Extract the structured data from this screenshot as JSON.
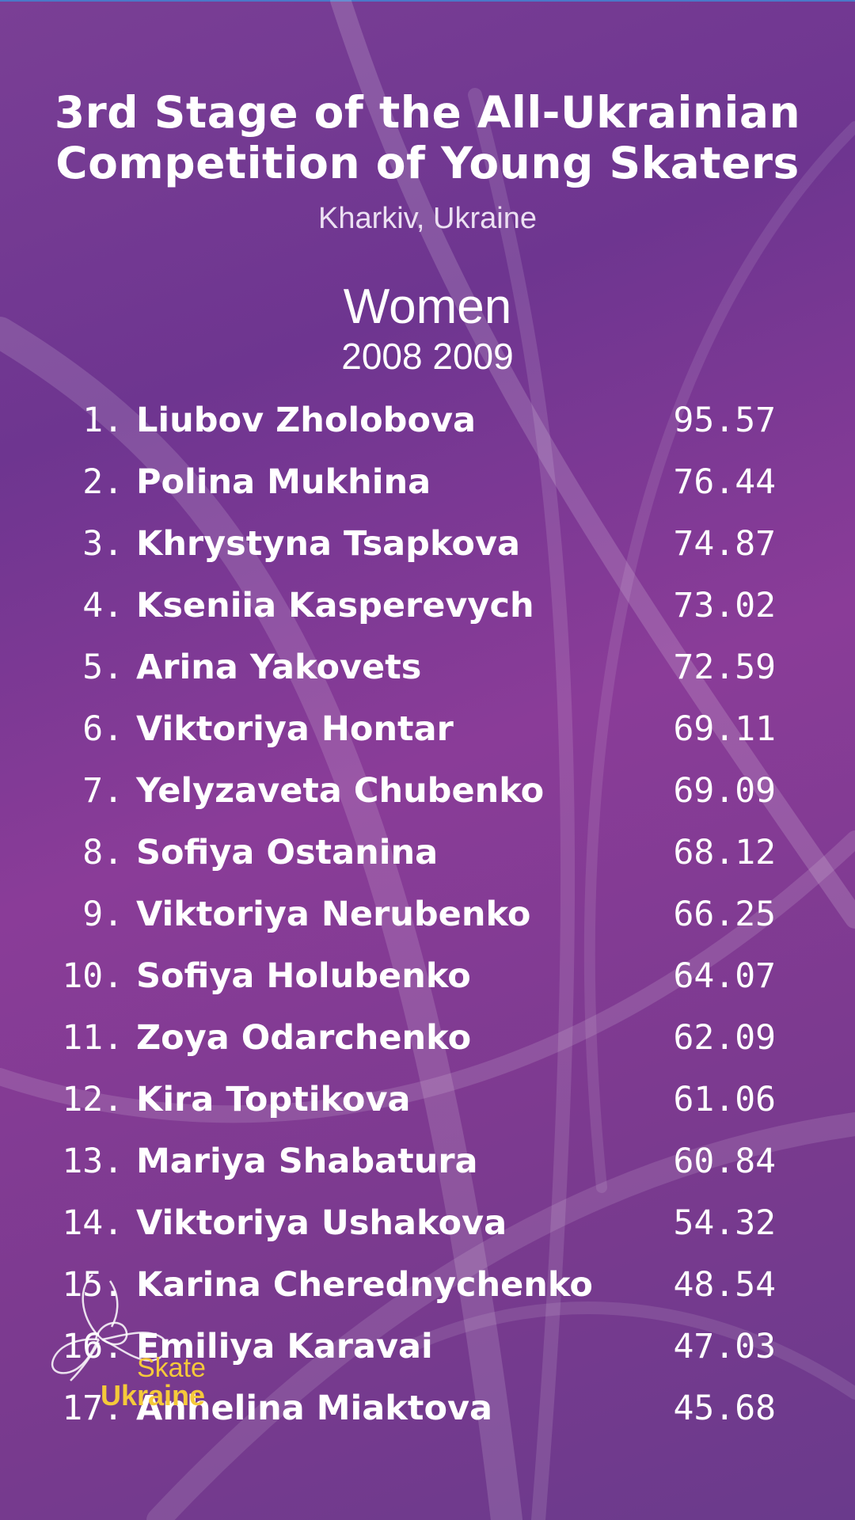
{
  "header": {
    "title_line1": "3rd Stage of the All-Ukrainian",
    "title_line2": "Competition of Young Skaters",
    "location": "Kharkiv, Ukraine"
  },
  "category": {
    "name": "Women",
    "years": "2008 2009"
  },
  "results": [
    {
      "rank": "1.",
      "name": "Liubov Zholobova",
      "score": "95.57"
    },
    {
      "rank": "2.",
      "name": "Polina Mukhina",
      "score": "76.44"
    },
    {
      "rank": "3.",
      "name": "Khrystyna Tsapkova",
      "score": "74.87"
    },
    {
      "rank": "4.",
      "name": "Kseniia Kasperevych",
      "score": "73.02"
    },
    {
      "rank": "5.",
      "name": "Arina Yakovets",
      "score": "72.59"
    },
    {
      "rank": "6.",
      "name": "Viktoriya Hontar",
      "score": "69.11"
    },
    {
      "rank": "7.",
      "name": "Yelyzaveta Chubenko",
      "score": "69.09"
    },
    {
      "rank": "8.",
      "name": "Sofiya Ostanina",
      "score": "68.12"
    },
    {
      "rank": "9.",
      "name": "Viktoriya Nerubenko",
      "score": "66.25"
    },
    {
      "rank": "10.",
      "name": "Sofiya Holubenko",
      "score": "64.07"
    },
    {
      "rank": "11.",
      "name": "Zoya Odarchenko",
      "score": "62.09"
    },
    {
      "rank": "12.",
      "name": "Kira Toptikova",
      "score": "61.06"
    },
    {
      "rank": "13.",
      "name": "Mariya Shabatura",
      "score": "60.84"
    },
    {
      "rank": "14.",
      "name": "Viktoriya Ushakova",
      "score": "54.32"
    },
    {
      "rank": "15.",
      "name": "Karina Cherednychenko",
      "score": "48.54"
    },
    {
      "rank": "16.",
      "name": "Emiliya Karavai",
      "score": "47.03"
    },
    {
      "rank": "17.",
      "name": "Anhelina Miaktova",
      "score": "45.68"
    }
  ],
  "logo": {
    "line1": "Skate",
    "line2": "Ukraine",
    "color": "#f5c93a"
  },
  "colors": {
    "background": "#7a3f95",
    "text": "#ffffff"
  }
}
